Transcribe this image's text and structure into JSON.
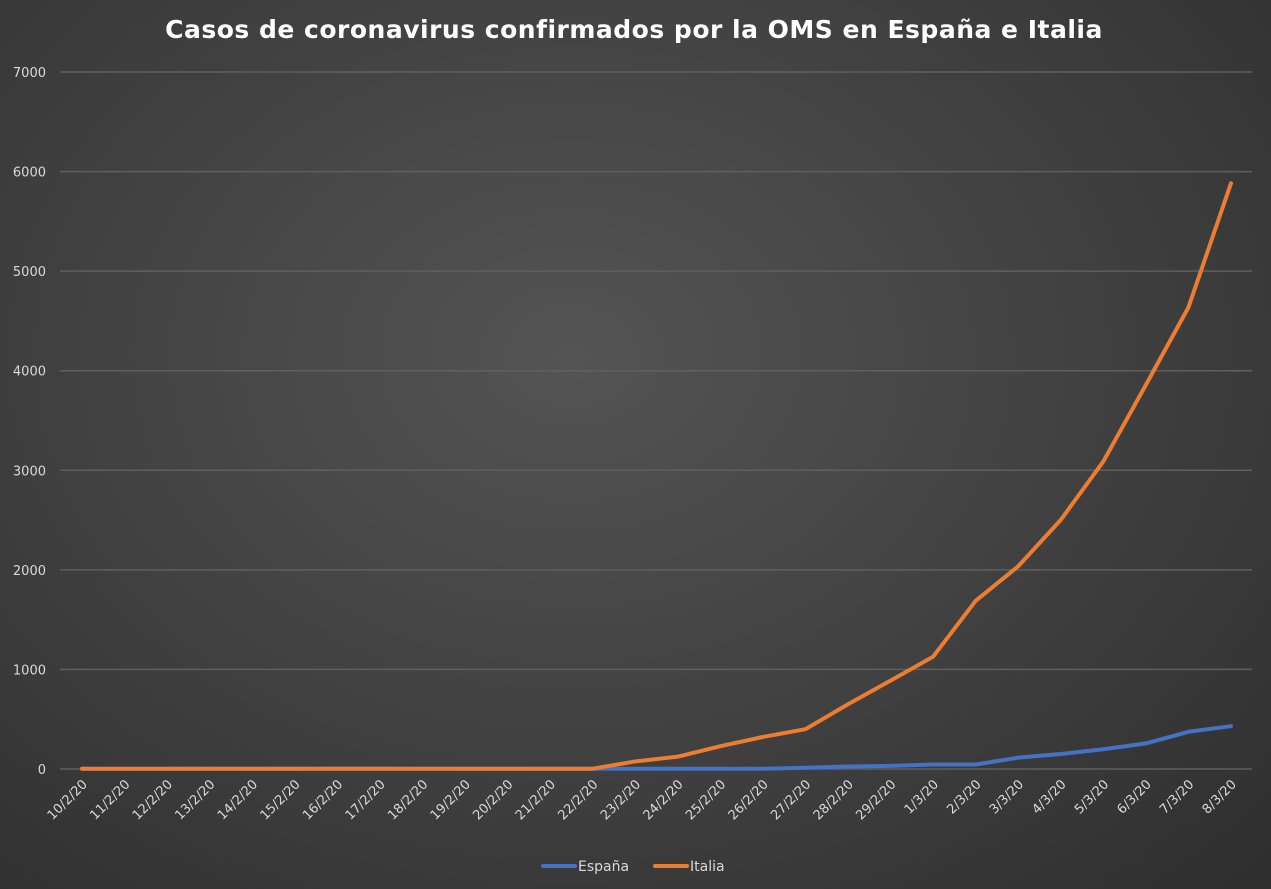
{
  "chart_data": {
    "type": "line",
    "title": "Casos de coronavirus confirmados por la OMS en España e Italia",
    "xlabel": "",
    "ylabel": "",
    "ylim": [
      0,
      7000
    ],
    "yticks": [
      0,
      1000,
      2000,
      3000,
      4000,
      5000,
      6000,
      7000
    ],
    "grid": true,
    "legend_position": "bottom",
    "categories": [
      "10/2/20",
      "11/2/20",
      "12/2/20",
      "13/2/20",
      "14/2/20",
      "15/2/20",
      "16/2/20",
      "17/2/20",
      "18/2/20",
      "19/2/20",
      "20/2/20",
      "21/2/20",
      "22/2/20",
      "23/2/20",
      "24/2/20",
      "25/2/20",
      "26/2/20",
      "27/2/20",
      "28/2/20",
      "29/2/20",
      "1/3/20",
      "2/3/20",
      "3/3/20",
      "4/3/20",
      "5/3/20",
      "6/3/20",
      "7/3/20",
      "8/3/20"
    ],
    "series": [
      {
        "name": "España",
        "color": "#4472c4",
        "values": [
          2,
          2,
          2,
          2,
          2,
          2,
          2,
          2,
          2,
          2,
          2,
          2,
          2,
          2,
          2,
          2,
          2,
          12,
          25,
          32,
          45,
          45,
          114,
          151,
          198,
          257,
          374,
          430
        ]
      },
      {
        "name": "Italia",
        "color": "#ed7d31",
        "values": [
          3,
          3,
          3,
          3,
          3,
          3,
          3,
          3,
          3,
          3,
          3,
          3,
          3,
          76,
          124,
          229,
          322,
          400,
          650,
          888,
          1128,
          1689,
          2036,
          2502,
          3089,
          3858,
          4636,
          5883
        ]
      }
    ]
  }
}
